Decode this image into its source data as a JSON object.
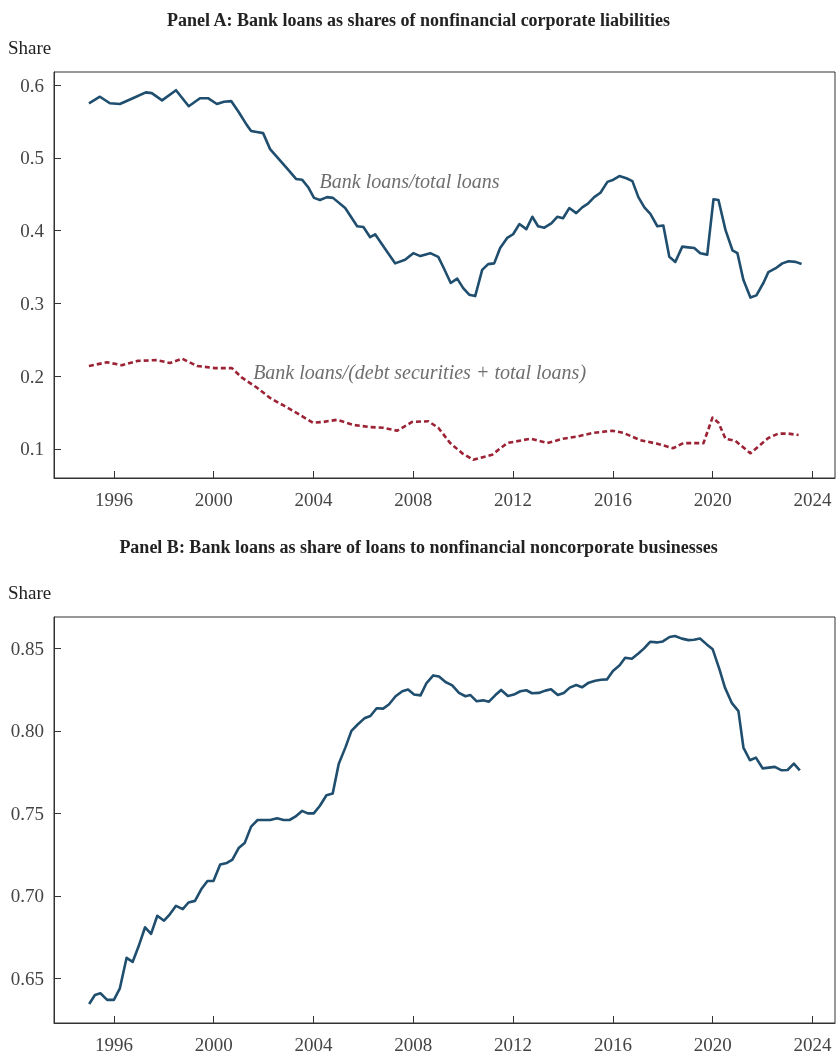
{
  "chart_data": [
    {
      "type": "line",
      "title": "Panel A: Bank loans as shares of nonfinancial corporate liabilities",
      "ylabel": "Share",
      "xlim": [
        1993.6,
        2024.9
      ],
      "xticks": [
        1996,
        2000,
        2004,
        2008,
        2012,
        2016,
        2020,
        2024
      ],
      "ylim": [
        0.06,
        0.618
      ],
      "yticks": [
        0.1,
        0.2,
        0.3,
        0.4,
        0.5,
        0.6
      ],
      "grid": false,
      "legend": false,
      "marker": "none",
      "series": [
        {
          "name": "Bank loans/total loans",
          "color": "#1f4e6e",
          "line_style": "solid",
          "x": [
            1995.0,
            1995.44,
            1995.84,
            1996.24,
            1996.76,
            1997.28,
            1997.52,
            1997.93,
            1998.49,
            1999.0,
            1999.45,
            1999.77,
            2000.13,
            2000.41,
            2000.7,
            2001.0,
            2001.33,
            2001.5,
            2001.98,
            2002.26,
            2003.0,
            2003.3,
            2003.54,
            2003.78,
            2004.02,
            2004.26,
            2004.54,
            2004.78,
            2005.27,
            2005.75,
            2006.0,
            2006.27,
            2006.47,
            2006.95,
            2007.27,
            2007.67,
            2008.0,
            2008.28,
            2008.68,
            2009.0,
            2009.2,
            2009.5,
            2009.76,
            2010.0,
            2010.24,
            2010.48,
            2010.76,
            2011.0,
            2011.24,
            2011.48,
            2011.76,
            2012.0,
            2012.25,
            2012.53,
            2012.77,
            2013.0,
            2013.25,
            2013.53,
            2013.77,
            2014.0,
            2014.25,
            2014.53,
            2014.77,
            2015.0,
            2015.25,
            2015.5,
            2015.78,
            2016.02,
            2016.26,
            2016.54,
            2016.78,
            2017.02,
            2017.26,
            2017.5,
            2017.78,
            2018.02,
            2018.26,
            2018.5,
            2018.78,
            2019.02,
            2019.26,
            2019.5,
            2019.78,
            2020.03,
            2020.23,
            2020.51,
            2020.79,
            2020.99,
            2021.23,
            2021.51,
            2021.75,
            2022.03,
            2022.23,
            2022.51,
            2022.79,
            2023.04,
            2023.32,
            2023.56
          ],
          "values": [
            0.575,
            0.584,
            0.575,
            0.574,
            0.582,
            0.59,
            0.589,
            0.579,
            0.593,
            0.571,
            0.582,
            0.582,
            0.574,
            0.577,
            0.578,
            0.563,
            0.545,
            0.537,
            0.534,
            0.512,
            0.483,
            0.471,
            0.47,
            0.46,
            0.445,
            0.442,
            0.446,
            0.445,
            0.431,
            0.406,
            0.405,
            0.391,
            0.395,
            0.371,
            0.355,
            0.36,
            0.369,
            0.365,
            0.369,
            0.364,
            0.35,
            0.328,
            0.334,
            0.321,
            0.312,
            0.31,
            0.346,
            0.354,
            0.355,
            0.376,
            0.39,
            0.395,
            0.409,
            0.402,
            0.419,
            0.406,
            0.404,
            0.41,
            0.419,
            0.417,
            0.431,
            0.424,
            0.432,
            0.437,
            0.446,
            0.452,
            0.467,
            0.47,
            0.475,
            0.472,
            0.468,
            0.446,
            0.432,
            0.423,
            0.406,
            0.407,
            0.364,
            0.357,
            0.378,
            0.377,
            0.376,
            0.369,
            0.367,
            0.443,
            0.442,
            0.401,
            0.373,
            0.369,
            0.332,
            0.308,
            0.311,
            0.328,
            0.343,
            0.348,
            0.355,
            0.358,
            0.357,
            0.354
          ]
        },
        {
          "name": "Bank loans/(debt securities + total loans)",
          "color": "#9b2335",
          "line_style": "dashed",
          "x": [
            1995.0,
            1995.72,
            1996.32,
            1996.96,
            1997.72,
            1998.25,
            1998.73,
            1999.33,
            2000.05,
            2000.73,
            2001.13,
            2001.74,
            2002.26,
            2002.78,
            2003.34,
            2003.98,
            2004.38,
            2004.94,
            2005.59,
            2006.27,
            2006.79,
            2007.35,
            2007.95,
            2008.6,
            2009.0,
            2009.48,
            2009.96,
            2010.4,
            2011.16,
            2011.76,
            2012.69,
            2013.37,
            2014.0,
            2014.57,
            2015.21,
            2015.98,
            2016.42,
            2017.1,
            2017.78,
            2018.42,
            2018.82,
            2019.63,
            2019.99,
            2020.23,
            2020.51,
            2020.91,
            2021.51,
            2022.23,
            2022.63,
            2023.04,
            2023.44
          ],
          "values": [
            0.214,
            0.219,
            0.215,
            0.221,
            0.222,
            0.218,
            0.224,
            0.214,
            0.211,
            0.211,
            0.198,
            0.184,
            0.17,
            0.16,
            0.149,
            0.136,
            0.137,
            0.14,
            0.133,
            0.13,
            0.129,
            0.125,
            0.137,
            0.138,
            0.129,
            0.108,
            0.094,
            0.085,
            0.092,
            0.108,
            0.114,
            0.108,
            0.114,
            0.117,
            0.122,
            0.125,
            0.122,
            0.112,
            0.107,
            0.101,
            0.108,
            0.108,
            0.143,
            0.136,
            0.114,
            0.111,
            0.094,
            0.115,
            0.121,
            0.121,
            0.119
          ]
        }
      ]
    },
    {
      "type": "line",
      "title": "Panel B: Bank loans as share of loans to nonfinancial noncorporate businesses",
      "ylabel": "Share",
      "xlim": [
        1993.6,
        2024.9
      ],
      "xticks": [
        1996,
        2000,
        2004,
        2008,
        2012,
        2016,
        2020,
        2024
      ],
      "ylim": [
        0.623,
        0.869
      ],
      "yticks": [
        {
          "value": 0.65,
          "label": "0.65"
        },
        {
          "value": 0.7,
          "label": "0.70"
        },
        {
          "value": 0.75,
          "label": "0.75"
        },
        {
          "value": 0.8,
          "label": "0.80"
        },
        {
          "value": 0.85,
          "label": "0.85"
        }
      ],
      "grid": false,
      "legend": false,
      "marker": "none",
      "series": [
        {
          "color": "#1f4e6e",
          "line_style": "solid",
          "x": [
            1995.01,
            1995.24,
            1995.46,
            1995.73,
            1996.0,
            1996.24,
            1996.51,
            1996.75,
            1996.98,
            1997.25,
            1997.49,
            1997.74,
            1998.01,
            1998.25,
            1998.49,
            1998.76,
            1998.99,
            1999.25,
            1999.5,
            1999.75,
            1999.99,
            2000.26,
            2000.53,
            2000.75,
            2001.0,
            2001.24,
            2001.5,
            2001.76,
            2002.27,
            2002.54,
            2002.8,
            2003.04,
            2003.27,
            2003.54,
            2003.77,
            2004.01,
            2004.25,
            2004.52,
            2004.77,
            2005.01,
            2005.28,
            2005.52,
            2005.78,
            2006.04,
            2006.28,
            2006.53,
            2006.79,
            2007.02,
            2007.29,
            2007.56,
            2007.79,
            2008.03,
            2008.29,
            2008.53,
            2008.8,
            2009.03,
            2009.29,
            2009.56,
            2009.83,
            2010.09,
            2010.29,
            2010.53,
            2010.8,
            2011.03,
            2011.29,
            2011.52,
            2011.79,
            2012.03,
            2012.29,
            2012.53,
            2012.76,
            2013.03,
            2013.29,
            2013.52,
            2013.79,
            2014.03,
            2014.27,
            2014.53,
            2014.76,
            2015.03,
            2015.29,
            2015.52,
            2015.76,
            2016.0,
            2016.27,
            2016.49,
            2016.76,
            2017.03,
            2017.25,
            2017.49,
            2017.76,
            2018.0,
            2018.27,
            2018.49,
            2018.76,
            2019.03,
            2019.25,
            2019.49,
            2019.76,
            2020.0,
            2020.27,
            2020.49,
            2020.76,
            2021.03,
            2021.23,
            2021.49,
            2021.73,
            2022.0,
            2022.49,
            2022.76,
            2023.0,
            2023.25,
            2023.49
          ],
          "values": [
            0.6345,
            0.64,
            0.641,
            0.637,
            0.637,
            0.644,
            0.6625,
            0.66,
            0.669,
            0.681,
            0.677,
            0.688,
            0.685,
            0.689,
            0.694,
            0.692,
            0.696,
            0.697,
            0.704,
            0.709,
            0.709,
            0.719,
            0.72,
            0.722,
            0.729,
            0.732,
            0.742,
            0.746,
            0.746,
            0.747,
            0.746,
            0.746,
            0.748,
            0.7515,
            0.75,
            0.75,
            0.7545,
            0.761,
            0.762,
            0.78,
            0.79,
            0.8,
            0.804,
            0.8076,
            0.809,
            0.8137,
            0.8135,
            0.816,
            0.821,
            0.824,
            0.825,
            0.822,
            0.8215,
            0.829,
            0.8336,
            0.833,
            0.8296,
            0.8276,
            0.823,
            0.821,
            0.8217,
            0.818,
            0.8185,
            0.8177,
            0.8217,
            0.8248,
            0.8211,
            0.822,
            0.824,
            0.8246,
            0.8228,
            0.823,
            0.8244,
            0.8252,
            0.8217,
            0.823,
            0.8262,
            0.8278,
            0.8264,
            0.8292,
            0.8304,
            0.831,
            0.8312,
            0.8363,
            0.8397,
            0.8443,
            0.8437,
            0.847,
            0.85,
            0.854,
            0.8536,
            0.8542,
            0.8569,
            0.8575,
            0.8559,
            0.855,
            0.8552,
            0.856,
            0.8524,
            0.8494,
            0.8373,
            0.8262,
            0.817,
            0.812,
            0.7899,
            0.7822,
            0.7838,
            0.7773,
            0.7782,
            0.7761,
            0.7763,
            0.7802,
            0.7761
          ]
        }
      ]
    }
  ]
}
